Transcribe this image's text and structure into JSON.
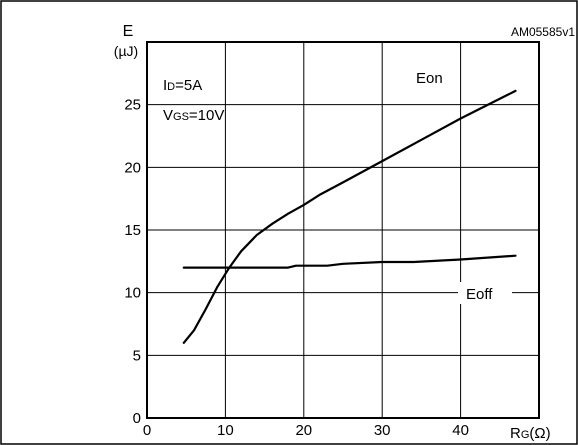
{
  "figure_id": "AM05585v1",
  "chart_data": {
    "type": "line",
    "ylabel_symbol": "E",
    "ylabel_unit": "(µJ)",
    "xlabel_main": "R",
    "xlabel_sub": "G",
    "xlabel_unit": "(Ω)",
    "xlim": [
      0,
      50
    ],
    "ylim": [
      0,
      30
    ],
    "xticks": [
      0,
      10,
      20,
      30,
      40
    ],
    "yticks": [
      0,
      5,
      10,
      15,
      20,
      25
    ],
    "grid": true,
    "conditions": [
      {
        "main": "I",
        "sub": "D",
        "rest": "=5A"
      },
      {
        "main": "V",
        "sub": "GS",
        "rest": "=10V"
      }
    ],
    "series": [
      {
        "name": "Eon",
        "x": [
          4.7,
          6,
          7.5,
          9,
          10.5,
          12,
          14,
          16,
          18,
          20,
          22,
          25,
          30,
          35,
          40,
          47
        ],
        "y": [
          6,
          7,
          8.7,
          10.5,
          12,
          13.3,
          14.6,
          15.5,
          16.3,
          17.0,
          17.8,
          18.8,
          20.5,
          22.2,
          23.9,
          26.1
        ]
      },
      {
        "name": "Eoff",
        "x": [
          4.7,
          10,
          15,
          18,
          19,
          23,
          25,
          30,
          34,
          40,
          47
        ],
        "y": [
          12,
          12,
          12,
          12,
          12.15,
          12.15,
          12.3,
          12.45,
          12.45,
          12.65,
          12.95
        ]
      }
    ]
  }
}
